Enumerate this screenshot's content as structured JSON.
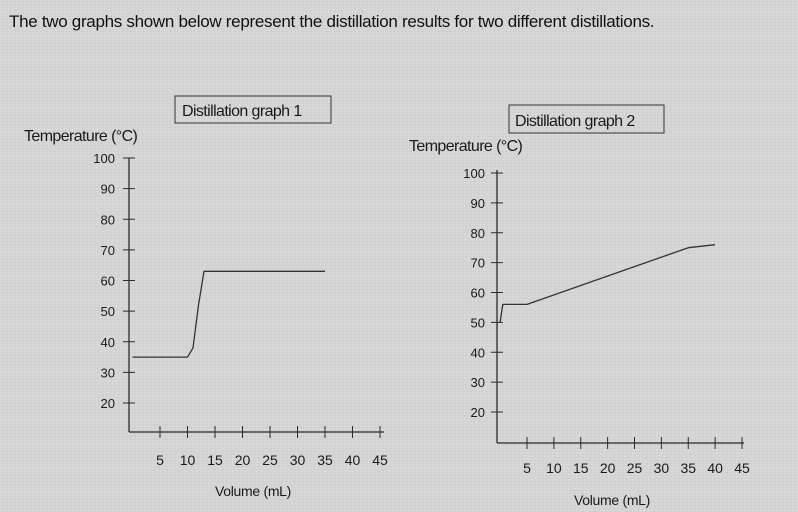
{
  "question": "The two graphs shown below represent the distillation results for two different distillations.",
  "chart_data": [
    {
      "type": "line",
      "title": "Distillation graph 1",
      "ylabel": "Temperature (°C)",
      "xlabel": "Volume (mL)",
      "yticks": [
        100,
        90,
        80,
        70,
        60,
        50,
        40,
        30,
        20
      ],
      "xticks": [
        5,
        10,
        15,
        20,
        25,
        30,
        35,
        40,
        45
      ],
      "series": [
        {
          "x": [
            0,
            10,
            11,
            12,
            13,
            35
          ],
          "y": [
            35,
            35,
            38,
            52,
            63,
            63
          ]
        }
      ],
      "line_color": "#333333"
    },
    {
      "type": "line",
      "title": "Distillation graph 2",
      "ylabel": "Temperature (°C)",
      "xlabel": "Volume (mL)",
      "yticks": [
        100,
        90,
        80,
        70,
        60,
        50,
        40,
        30,
        20
      ],
      "xticks": [
        5,
        10,
        15,
        20,
        25,
        30,
        35,
        40,
        45
      ],
      "series": [
        {
          "x": [
            0,
            0.5,
            5,
            35,
            40
          ],
          "y": [
            50,
            56,
            56,
            75,
            76
          ]
        }
      ],
      "line_color": "#333333"
    }
  ]
}
